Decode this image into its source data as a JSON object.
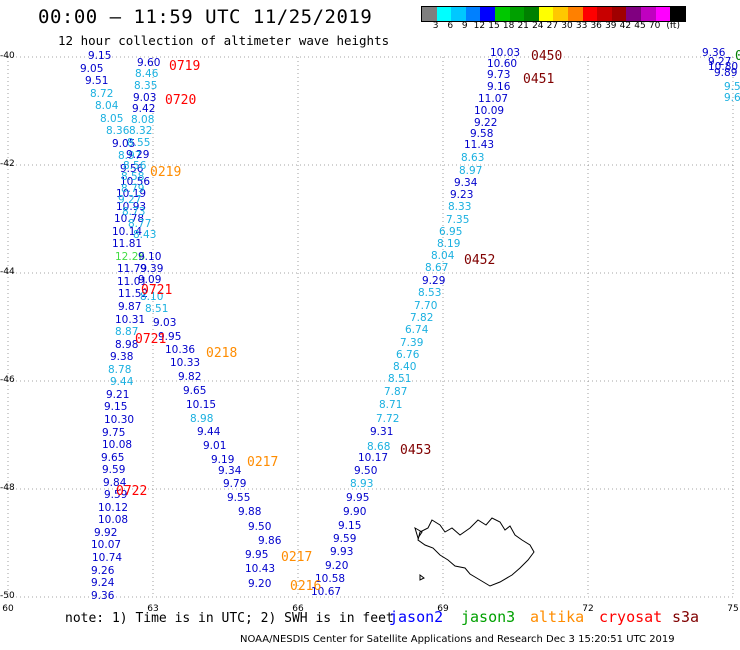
{
  "header": {
    "title": "00:00 – 11:59 UTC 11/25/2019",
    "subtitle": "12 hour collection of altimeter wave heights"
  },
  "scale": {
    "colors": [
      "#7f7f7f",
      "#00ffff",
      "#00c8ff",
      "#0080ff",
      "#0000ff",
      "#00c800",
      "#00a000",
      "#008000",
      "#ffff00",
      "#ffc800",
      "#ff8000",
      "#ff0000",
      "#c80000",
      "#a00000",
      "#800080",
      "#c000c0",
      "#ff00ff",
      "#000000"
    ],
    "labels": [
      "3",
      "6",
      "9",
      "12",
      "15",
      "18",
      "21",
      "24",
      "27",
      "30",
      "33",
      "36",
      "39",
      "42",
      "45",
      "70",
      "(ft)"
    ]
  },
  "axes": {
    "lat_labels": [
      "-40",
      "-42",
      "-44",
      "-46",
      "-48",
      "-50"
    ],
    "lon_labels": [
      "60",
      "63",
      "66",
      "69",
      "72",
      "75"
    ]
  },
  "tracks": [
    {
      "color": "#0000cc",
      "values": [
        "9.15",
        "9.05",
        "9.51",
        "8.72",
        "8.04",
        "8.05",
        "8.36",
        "9.05",
        "8.97",
        "9.56",
        "10.56",
        "10.19",
        "10.93",
        "10.78",
        "10.14",
        "11.81",
        "12.26",
        "11.79",
        "11.01",
        "11.52",
        "9.87",
        "10.31",
        "8.87",
        "8.98",
        "9.38",
        "8.78",
        "9.44",
        "9.21",
        "9.15",
        "10.30",
        "9.75",
        "10.08",
        "9.65",
        "9.59",
        "9.84",
        "9.59",
        "10.12",
        "10.08",
        "9.92",
        "10.07",
        "10.74",
        "9.26",
        "9.24",
        "9.36"
      ],
      "colors": [
        "d",
        "d",
        "d",
        "c",
        "c",
        "c",
        "c",
        "d",
        "c",
        "d",
        "d",
        "d",
        "d",
        "d",
        "d",
        "d",
        "g",
        "d",
        "d",
        "d",
        "d",
        "d",
        "c",
        "d",
        "d",
        "c",
        "c",
        "d",
        "d",
        "d",
        "d",
        "d",
        "d",
        "d",
        "d",
        "d",
        "d",
        "d",
        "d",
        "d",
        "d",
        "d",
        "d",
        "d"
      ]
    },
    {
      "values": [
        "9.60",
        "8.46",
        "8.35",
        "9.03",
        "9.42",
        "8.08",
        "8.32",
        "8.55",
        "9.29",
        "8.56",
        "8.58",
        "8.79",
        "9.27",
        "8.73",
        "8.77",
        "8.43",
        "9.10",
        "9.39",
        "9.09",
        "8.10",
        "8.51",
        "9.03",
        "9.95",
        "10.36",
        "10.33",
        "9.82",
        "9.65",
        "10.15",
        "8.98",
        "9.44",
        "9.01",
        "9.19",
        "9.34",
        "9.79",
        "9.55",
        "9.88",
        "9.50",
        "9.86",
        "9.95",
        "10.43",
        "9.20"
      ],
      "colors": [
        "d",
        "c",
        "c",
        "d",
        "d",
        "c",
        "c",
        "c",
        "d",
        "c",
        "c",
        "c",
        "c",
        "c",
        "c",
        "c",
        "d",
        "d",
        "d",
        "c",
        "c",
        "d",
        "d",
        "d",
        "d",
        "d",
        "d",
        "d",
        "c",
        "d",
        "d",
        "d",
        "d",
        "d",
        "d",
        "d",
        "d",
        "d",
        "d",
        "d",
        "d"
      ]
    },
    {
      "values": [
        "10.03",
        "10.60",
        "9.73",
        "9.16",
        "11.07",
        "10.09",
        "9.22",
        "9.58",
        "11.43",
        "8.63",
        "8.97",
        "9.34",
        "9.23",
        "8.33",
        "7.35",
        "6.95",
        "8.19",
        "8.04",
        "8.67",
        "9.29",
        "8.53",
        "7.70",
        "7.82",
        "6.74",
        "7.39",
        "6.76",
        "8.40",
        "8.51",
        "7.87",
        "8.71",
        "7.72",
        "9.31",
        "8.68",
        "10.17",
        "9.50",
        "8.93",
        "9.95",
        "9.90",
        "9.15",
        "9.59",
        "9.93",
        "9.20",
        "10.58",
        "10.67"
      ],
      "colors": [
        "d",
        "d",
        "d",
        "d",
        "d",
        "d",
        "d",
        "d",
        "d",
        "c",
        "c",
        "d",
        "d",
        "c",
        "c",
        "c",
        "c",
        "c",
        "c",
        "d",
        "c",
        "c",
        "c",
        "c",
        "c",
        "c",
        "c",
        "c",
        "c",
        "c",
        "c",
        "d",
        "c",
        "d",
        "d",
        "c",
        "d",
        "d",
        "d",
        "d",
        "d",
        "d",
        "d",
        "d"
      ]
    },
    {
      "values": [
        "9.36",
        "9.27",
        "10.80",
        "9.89",
        "9.5",
        "9.6"
      ],
      "colors": [
        "d",
        "d",
        "d",
        "d",
        "c",
        "c"
      ]
    }
  ],
  "orbit_labels": [
    {
      "text": "0719",
      "color": "#ff0000"
    },
    {
      "text": "0720",
      "color": "#ff0000"
    },
    {
      "text": "0219",
      "color": "#ff8c00"
    },
    {
      "text": "0721",
      "color": "#ff0000"
    },
    {
      "text": "0721",
      "color": "#ff0000"
    },
    {
      "text": "0218",
      "color": "#ff8c00"
    },
    {
      "text": "0217",
      "color": "#ff8c00"
    },
    {
      "text": "0722",
      "color": "#ff0000"
    },
    {
      "text": "0217",
      "color": "#ff8c00"
    },
    {
      "text": "0216",
      "color": "#ff8c00"
    },
    {
      "text": "0450",
      "color": "#800000"
    },
    {
      "text": "0451",
      "color": "#800000"
    },
    {
      "text": "0452",
      "color": "#800000"
    },
    {
      "text": "0453",
      "color": "#800000"
    },
    {
      "text": "0",
      "color": "#008000"
    }
  ],
  "footer": {
    "note": "note: 1) Time is in UTC; 2) SWH is in feet",
    "legend": [
      {
        "text": "jason2",
        "color": "#0000ff"
      },
      {
        "text": "jason3",
        "color": "#00a000"
      },
      {
        "text": "altika",
        "color": "#ff8c00"
      },
      {
        "text": "cryosat",
        "color": "#ff0000"
      },
      {
        "text": "s3a",
        "color": "#800000"
      }
    ],
    "credit": "NOAA/NESDIS Center for Satellite Applications and Research   Dec  3 15:20:51 UTC 2019"
  }
}
